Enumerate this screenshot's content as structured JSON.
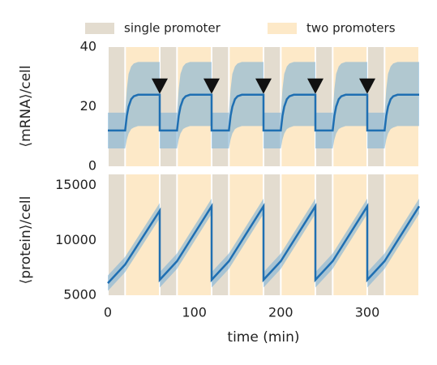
{
  "chart_data": [
    {
      "type": "line",
      "ylabel": "⟨mRNA⟩/cell",
      "xlim": [
        0,
        360
      ],
      "ylim": [
        0,
        40
      ],
      "yticks": [
        0,
        20,
        40
      ],
      "regions": [
        {
          "name": "single promoter",
          "color": "#e3dccf",
          "intervals": [
            [
              0,
              20
            ],
            [
              60,
              80
            ],
            [
              120,
              140
            ],
            [
              180,
              200
            ],
            [
              240,
              260
            ],
            [
              300,
              320
            ]
          ]
        },
        {
          "name": "two promoters",
          "color": "#fde9c8",
          "intervals": [
            [
              20,
              60
            ],
            [
              80,
              120
            ],
            [
              140,
              180
            ],
            [
              200,
              240
            ],
            [
              260,
              300
            ],
            [
              320,
              360
            ]
          ]
        }
      ],
      "x": [
        0,
        20,
        22,
        24,
        27,
        30,
        35,
        40,
        60,
        60,
        80,
        82,
        84,
        87,
        90,
        95,
        100,
        120,
        120,
        140,
        142,
        144,
        147,
        150,
        155,
        160,
        180,
        180,
        200,
        202,
        204,
        207,
        210,
        215,
        220,
        240,
        240,
        260,
        262,
        264,
        267,
        270,
        275,
        280,
        300,
        300,
        320,
        322,
        324,
        327,
        330,
        335,
        340,
        360
      ],
      "series": [
        {
          "color": "#1f6fb2",
          "values": [
            12,
            12,
            17,
            20,
            22.5,
            23.5,
            24,
            24,
            24,
            12,
            12,
            17,
            20,
            22.5,
            23.5,
            24,
            24,
            24,
            12,
            12,
            17,
            20,
            22.5,
            23.5,
            24,
            24,
            24,
            12,
            12,
            17,
            20,
            22.5,
            23.5,
            24,
            24,
            24,
            12,
            12,
            17,
            20,
            22.5,
            23.5,
            24,
            24,
            24,
            12,
            12,
            17,
            20,
            22.5,
            23.5,
            24,
            24,
            24
          ]
        }
      ],
      "band": {
        "color": "#7fb3d5",
        "upper": [
          18,
          18,
          26,
          31,
          33.5,
          34.5,
          35,
          35,
          35,
          18,
          18,
          26,
          31,
          33.5,
          34.5,
          35,
          35,
          35,
          18,
          18,
          26,
          31,
          33.5,
          34.5,
          35,
          35,
          35,
          18,
          18,
          26,
          31,
          33.5,
          34.5,
          35,
          35,
          35,
          18,
          18,
          26,
          31,
          33.5,
          34.5,
          35,
          35,
          35,
          18,
          18,
          26,
          31,
          33.5,
          34.5,
          35,
          35,
          35
        ],
        "lower": [
          6,
          6,
          9,
          11,
          12.5,
          13,
          13.5,
          13.5,
          13.5,
          6,
          6,
          9,
          11,
          12.5,
          13,
          13.5,
          13.5,
          13.5,
          6,
          6,
          9,
          11,
          12.5,
          13,
          13.5,
          13.5,
          13.5,
          6,
          6,
          9,
          11,
          12.5,
          13,
          13.5,
          13.5,
          13.5,
          6,
          6,
          9,
          11,
          12.5,
          13,
          13.5,
          13.5,
          13.5,
          6,
          6,
          9,
          11,
          12.5,
          13,
          13.5,
          13.5,
          13.5
        ]
      },
      "markers": {
        "color": "#111111",
        "x": [
          60,
          120,
          180,
          240,
          300
        ],
        "values": [
          27,
          27,
          27,
          27,
          27
        ]
      }
    },
    {
      "type": "line",
      "ylabel": "⟨protein⟩/cell",
      "xlabel": "time (min)",
      "xlim": [
        0,
        360
      ],
      "xticks": [
        0,
        100,
        200,
        300
      ],
      "ylim": [
        5000,
        16000
      ],
      "yticks": [
        5000,
        10000,
        15000
      ],
      "x": [
        0,
        20,
        60,
        60,
        80,
        120,
        120,
        140,
        180,
        180,
        200,
        240,
        240,
        260,
        300,
        300,
        320,
        360
      ],
      "series": [
        {
          "color": "#1f6fb2",
          "values": [
            6100,
            7800,
            12700,
            6400,
            8100,
            13100,
            6400,
            8100,
            13100,
            6400,
            8100,
            13100,
            6400,
            8100,
            13100,
            6400,
            8100,
            13100
          ]
        }
      ],
      "band": {
        "color": "#7fb3d5",
        "upper": [
          6800,
          8500,
          13400,
          7100,
          8800,
          13800,
          7100,
          8800,
          13800,
          7100,
          8800,
          13800,
          7100,
          8800,
          13800,
          7100,
          8800,
          13800
        ],
        "lower": [
          5400,
          7100,
          12000,
          5700,
          7400,
          12400,
          5700,
          7400,
          12400,
          5700,
          7400,
          12400,
          5700,
          7400,
          12400,
          5700,
          7400,
          12400
        ]
      }
    }
  ]
}
